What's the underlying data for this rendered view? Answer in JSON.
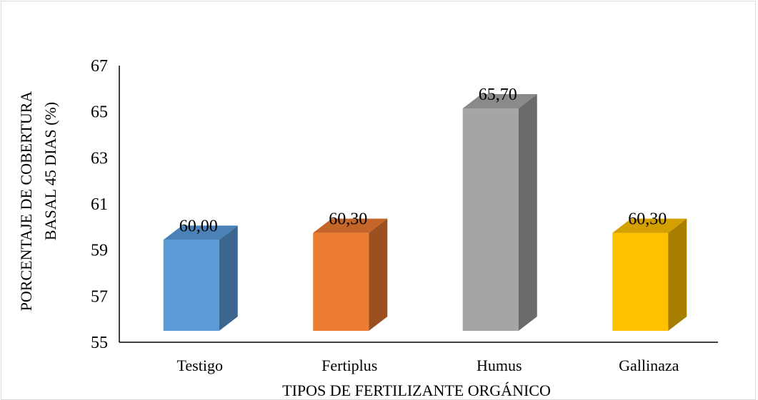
{
  "chart_data": {
    "type": "bar",
    "style": "3d-column",
    "categories": [
      "Testigo",
      "Fertiplus",
      "Humus",
      "Gallinaza"
    ],
    "values": [
      60.0,
      60.3,
      65.7,
      60.3
    ],
    "value_labels": [
      "60,00",
      "60,30",
      "65,70",
      "60,30"
    ],
    "colors": [
      "#5b9bd5",
      "#ed7d31",
      "#a5a5a5",
      "#ffc000"
    ],
    "side_colors": [
      "#3a6690",
      "#9c5020",
      "#6b6b6b",
      "#a87e00"
    ],
    "top_colors": [
      "#4a82b8",
      "#c4652a",
      "#8a8a8a",
      "#d4a000"
    ],
    "ylim": [
      55,
      67
    ],
    "yticks": [
      55,
      57,
      59,
      61,
      63,
      65,
      67
    ],
    "ylabel_lines": [
      "PORCENTAJE DE COBERTURA",
      "BASAL 45 DIAS (%)"
    ],
    "xlabel": "TIPOS DE FERTILIZANTE ORGÁNICO",
    "grid": false,
    "legend": "none"
  }
}
